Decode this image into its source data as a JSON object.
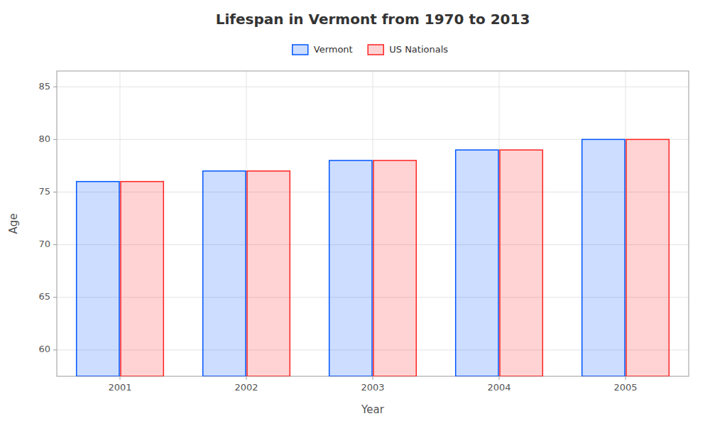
{
  "chart_data": {
    "type": "bar",
    "title": "Lifespan in Vermont from 1970 to 2013",
    "x_label": "Year",
    "y_label": "Age",
    "categories": [
      "2001",
      "2002",
      "2003",
      "2004",
      "2005"
    ],
    "series": [
      {
        "name": "Vermont",
        "color": "#0055ff",
        "values": [
          76.0,
          77.0,
          78.0,
          79.0,
          80.0
        ]
      },
      {
        "name": "US Nationals",
        "color": "#ff2222",
        "values": [
          76.0,
          77.0,
          78.0,
          79.0,
          80.0
        ]
      }
    ],
    "ylim": [
      57.5,
      86.5
    ],
    "yticks": [
      60,
      65,
      70,
      75,
      80,
      85
    ],
    "grid": true,
    "legend": "top"
  }
}
